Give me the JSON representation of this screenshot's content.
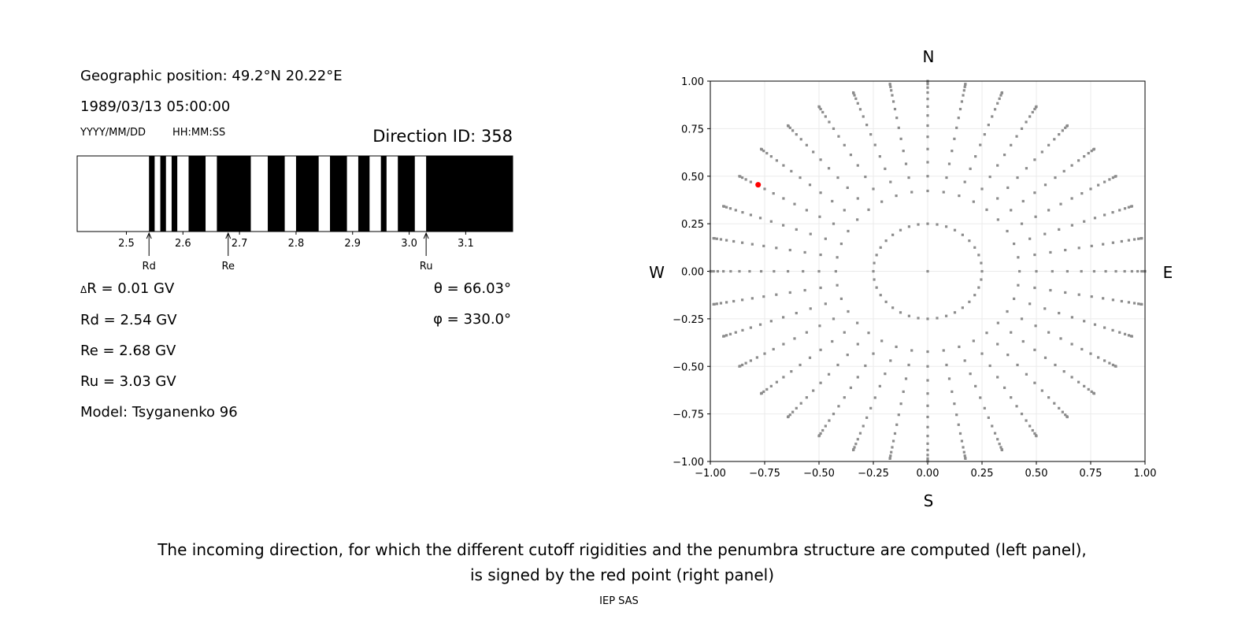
{
  "left_panel": {
    "geo_position": "Geographic position: 49.2°N 20.22°E",
    "datetime": "1989/03/13 05:00:00",
    "date_format": "YYYY/MM/DD",
    "time_format": "HH:MM:SS",
    "direction_id": "Direction ID: 358",
    "delta_r": "R = 0.01 GV",
    "delta_symbol": "Δ",
    "rd": "Rd = 2.54 GV",
    "re": "Re = 2.68 GV",
    "ru": "Ru = 3.03 GV",
    "model": "Model: Tsyganenko 96",
    "theta": "θ = 66.03°",
    "phi": "φ = 330.0°"
  },
  "caption": {
    "line1": "The incoming direction, for which the different cutoff rigidities and the penumbra structure are computed (left panel),",
    "line2": "is signed by the red point (right panel)",
    "credit": "IEP SAS"
  },
  "chart_data": [
    {
      "type": "penumbra-bar",
      "xlim": [
        2.413,
        3.183
      ],
      "xticks": [
        "2.5",
        "2.6",
        "2.7",
        "2.8",
        "2.9",
        "3.0",
        "3.1"
      ],
      "base_color": "#000000",
      "allowed_color": "#ffffff",
      "allowed_intervals": [
        [
          2.413,
          2.54
        ],
        [
          2.55,
          2.56
        ],
        [
          2.57,
          2.58
        ],
        [
          2.59,
          2.61
        ],
        [
          2.64,
          2.66
        ],
        [
          2.72,
          2.75
        ],
        [
          2.78,
          2.8
        ],
        [
          2.84,
          2.86
        ],
        [
          2.89,
          2.91
        ],
        [
          2.93,
          2.95
        ],
        [
          2.96,
          2.98
        ],
        [
          3.01,
          3.03
        ]
      ],
      "markers": [
        {
          "label": "Rd",
          "value": 2.54
        },
        {
          "label": "Re",
          "value": 2.68
        },
        {
          "label": "Ru",
          "value": 3.03
        }
      ]
    },
    {
      "type": "scatter",
      "xlim": [
        -1,
        1
      ],
      "ylim": [
        -1,
        1
      ],
      "xticks": [
        "−1.00",
        "−0.75",
        "−0.50",
        "−0.25",
        "0.00",
        "0.25",
        "0.50",
        "0.75",
        "1.00"
      ],
      "yticks": [
        "−1.00",
        "−0.75",
        "−0.50",
        "−0.25",
        "0.00",
        "0.25",
        "0.50",
        "0.75",
        "1.00"
      ],
      "tick_values": [
        -1,
        -0.75,
        -0.5,
        -0.25,
        0,
        0.25,
        0.5,
        0.75,
        1
      ],
      "grid": true,
      "directions": {
        "N": "N",
        "S": "S",
        "W": "W",
        "E": "E"
      },
      "point_color": "#8c8c8c",
      "points_center": [
        0,
        0
      ],
      "inner_ring_radius": 0.25,
      "azimuth_step_deg": 10,
      "spoke_zenith_deg": [
        25,
        30,
        35,
        40,
        45,
        50,
        55,
        60,
        65,
        70,
        75,
        80,
        85,
        90
      ],
      "highlight": {
        "x": -0.78,
        "y": 0.455,
        "color": "#ff0000"
      }
    }
  ]
}
